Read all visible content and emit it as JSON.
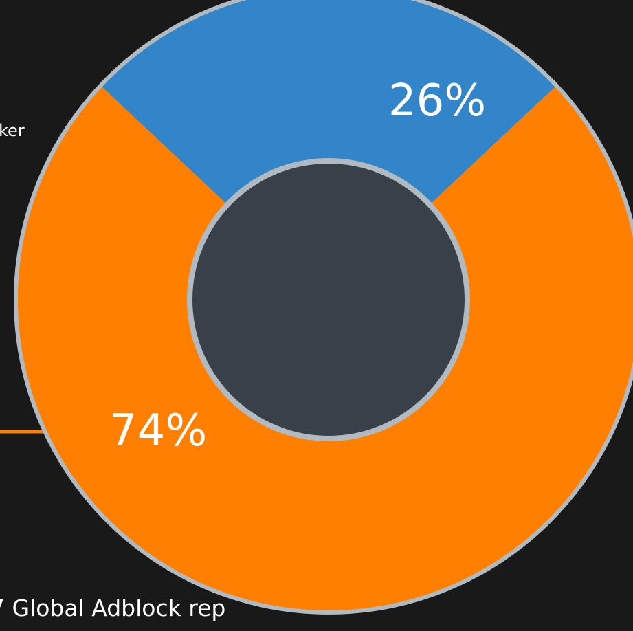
{
  "chart_data": {
    "type": "pie",
    "title": "",
    "slices": [
      {
        "label": "",
        "value": 26,
        "display": "26%",
        "color": "#3285C8"
      },
      {
        "label": "",
        "value": 74,
        "display": "74%",
        "color": "#FF7F00"
      }
    ],
    "center_color": "#384049",
    "outline_color": "#B1B9C1",
    "leader_color": "#FF7F00",
    "legend_fragment": "ker",
    "source_fragment": "7 Global Adblock rep"
  },
  "colors": {
    "background": "#191919",
    "text": "#FFFFFF"
  }
}
